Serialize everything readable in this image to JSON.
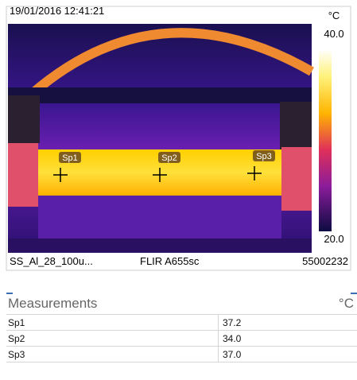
{
  "image": {
    "timestamp": "19/01/2016 12:41:21",
    "unit": "°C",
    "scale_max": "40.0",
    "scale_min": "20.0",
    "file_name": "SS_Al_28_100u...",
    "camera": "FLIR A655sc",
    "serial": "55002232",
    "spots": [
      "Sp1",
      "Sp2",
      "Sp3"
    ]
  },
  "measurements": {
    "title": "Measurements",
    "unit": "°C",
    "rows": [
      [
        "Sp1",
        "37.2"
      ],
      [
        "Sp2",
        "34.0"
      ],
      [
        "Sp3",
        "37.0"
      ]
    ]
  }
}
